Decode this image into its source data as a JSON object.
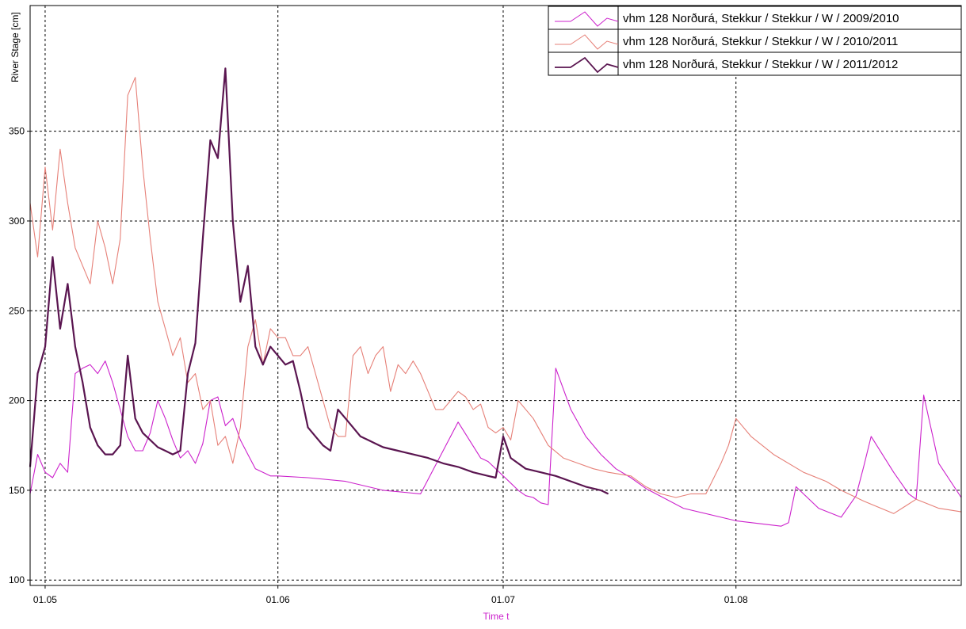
{
  "chart_data": {
    "type": "line",
    "title": "",
    "ylabel": "River Stage [cm]",
    "xlabel": "Time t",
    "ylim": [
      97,
      420
    ],
    "xlim": [
      "04-29",
      "08-31"
    ],
    "y_ticks": [
      100,
      150,
      200,
      250,
      300,
      350
    ],
    "x_ticks": [
      {
        "date": "05-01",
        "label": "01.05"
      },
      {
        "date": "06-01",
        "label": "01.06"
      },
      {
        "date": "07-01",
        "label": "01.07"
      },
      {
        "date": "08-01",
        "label": "01.08"
      }
    ],
    "grid": true,
    "legend_position": "top-right",
    "colors": {
      "xlabel": "#cc22cc"
    },
    "series": [
      {
        "name": "vhm 128 Norðurá, Stekkur / Stekkur / W /  2009/2010",
        "color": "#cc22cc",
        "width": 1.1,
        "x": [
          "04-29",
          "04-30",
          "05-01",
          "05-02",
          "05-03",
          "05-04",
          "05-05",
          "05-06",
          "05-07",
          "05-08",
          "05-09",
          "05-10",
          "05-11",
          "05-12",
          "05-13",
          "05-14",
          "05-15",
          "05-16",
          "05-17",
          "05-18",
          "05-19",
          "05-20",
          "05-21",
          "05-22",
          "05-23",
          "05-24",
          "05-25",
          "05-26",
          "05-27",
          "05-28",
          "05-29",
          "05-30",
          "05-31",
          "06-01",
          "06-05",
          "06-10",
          "06-15",
          "06-20",
          "06-25",
          "06-28",
          "06-29",
          "06-30",
          "07-01",
          "07-02",
          "07-03",
          "07-04",
          "07-05",
          "07-06",
          "07-07",
          "07-08",
          "07-10",
          "07-12",
          "07-14",
          "07-16",
          "07-18",
          "07-20",
          "07-25",
          "07-30",
          "08-01",
          "08-05",
          "08-07",
          "08-08",
          "08-09",
          "08-12",
          "08-15",
          "08-17",
          "08-18",
          "08-19",
          "08-22",
          "08-24",
          "08-25",
          "08-26",
          "08-28",
          "08-31"
        ],
        "y": [
          148,
          170,
          160,
          157,
          165,
          160,
          215,
          218,
          220,
          215,
          222,
          210,
          195,
          180,
          172,
          172,
          182,
          200,
          190,
          178,
          168,
          172,
          165,
          176,
          200,
          202,
          186,
          190,
          178,
          170,
          162,
          160,
          158,
          158,
          157,
          155,
          150,
          148,
          188,
          168,
          166,
          162,
          158,
          154,
          150,
          147,
          146,
          143,
          142,
          218,
          195,
          180,
          170,
          162,
          157,
          151,
          140,
          135,
          133,
          131,
          130,
          132,
          152,
          140,
          135,
          147,
          163,
          180,
          160,
          148,
          145,
          203,
          165,
          146
        ]
      },
      {
        "name": "vhm 128 Norðurá, Stekkur / Stekkur / W /  2010/2011",
        "color": "#e68078",
        "width": 1.1,
        "x": [
          "04-29",
          "04-30",
          "05-01",
          "05-02",
          "05-03",
          "05-04",
          "05-05",
          "05-06",
          "05-07",
          "05-08",
          "05-09",
          "05-10",
          "05-11",
          "05-12",
          "05-13",
          "05-14",
          "05-15",
          "05-16",
          "05-17",
          "05-18",
          "05-19",
          "05-20",
          "05-21",
          "05-22",
          "05-23",
          "05-24",
          "05-25",
          "05-26",
          "05-27",
          "05-28",
          "05-29",
          "05-30",
          "05-31",
          "06-01",
          "06-02",
          "06-03",
          "06-04",
          "06-05",
          "06-06",
          "06-07",
          "06-08",
          "06-09",
          "06-10",
          "06-11",
          "06-12",
          "06-13",
          "06-14",
          "06-15",
          "06-16",
          "06-17",
          "06-18",
          "06-19",
          "06-20",
          "06-21",
          "06-22",
          "06-23",
          "06-24",
          "06-25",
          "06-26",
          "06-27",
          "06-28",
          "06-29",
          "06-30",
          "07-01",
          "07-02",
          "07-03",
          "07-05",
          "07-07",
          "07-09",
          "07-11",
          "07-13",
          "07-15",
          "07-18",
          "07-20",
          "07-22",
          "07-24",
          "07-26",
          "07-28",
          "07-30",
          "07-31",
          "08-01",
          "08-03",
          "08-06",
          "08-10",
          "08-13",
          "08-15",
          "08-18",
          "08-22",
          "08-25",
          "08-28",
          "08-31"
        ],
        "y": [
          310,
          280,
          330,
          295,
          340,
          310,
          285,
          275,
          265,
          300,
          285,
          265,
          290,
          370,
          380,
          330,
          290,
          255,
          240,
          225,
          235,
          210,
          215,
          195,
          200,
          175,
          180,
          165,
          185,
          230,
          245,
          220,
          240,
          235,
          235,
          225,
          225,
          230,
          215,
          200,
          185,
          180,
          180,
          225,
          230,
          215,
          225,
          230,
          205,
          220,
          215,
          222,
          215,
          205,
          195,
          195,
          200,
          205,
          202,
          195,
          198,
          185,
          182,
          185,
          178,
          200,
          190,
          175,
          168,
          165,
          162,
          160,
          158,
          152,
          148,
          146,
          148,
          148,
          165,
          175,
          190,
          180,
          170,
          160,
          155,
          150,
          144,
          137,
          145,
          140,
          138
        ]
      },
      {
        "name": "vhm 128 Norðurá, Stekkur / Stekkur / W /  2011/2012",
        "color": "#5a1550",
        "width": 2.2,
        "x": [
          "04-29",
          "04-30",
          "05-01",
          "05-02",
          "05-03",
          "05-04",
          "05-05",
          "05-06",
          "05-07",
          "05-08",
          "05-09",
          "05-10",
          "05-11",
          "05-12",
          "05-13",
          "05-14",
          "05-15",
          "05-16",
          "05-17",
          "05-18",
          "05-19",
          "05-20",
          "05-21",
          "05-22",
          "05-23",
          "05-24",
          "05-25",
          "05-26",
          "05-27",
          "05-28",
          "05-29",
          "05-30",
          "05-31",
          "06-01",
          "06-02",
          "06-03",
          "06-04",
          "06-05",
          "06-06",
          "06-07",
          "06-08",
          "06-09",
          "06-10",
          "06-11",
          "06-12",
          "06-13",
          "06-14",
          "06-15",
          "06-17",
          "06-19",
          "06-21",
          "06-23",
          "06-25",
          "06-27",
          "06-29",
          "06-30",
          "07-01",
          "07-02",
          "07-03",
          "07-04",
          "07-06",
          "07-08",
          "07-10",
          "07-12",
          "07-14",
          "07-15"
        ],
        "y": [
          163,
          215,
          230,
          280,
          240,
          265,
          230,
          210,
          185,
          175,
          170,
          170,
          175,
          225,
          190,
          182,
          178,
          174,
          172,
          170,
          172,
          215,
          232,
          290,
          345,
          335,
          385,
          300,
          255,
          275,
          230,
          220,
          230,
          225,
          220,
          222,
          205,
          185,
          180,
          175,
          172,
          195,
          190,
          185,
          180,
          178,
          176,
          174,
          172,
          170,
          168,
          165,
          163,
          160,
          158,
          157,
          180,
          168,
          165,
          162,
          160,
          158,
          155,
          152,
          150,
          148
        ]
      }
    ]
  }
}
